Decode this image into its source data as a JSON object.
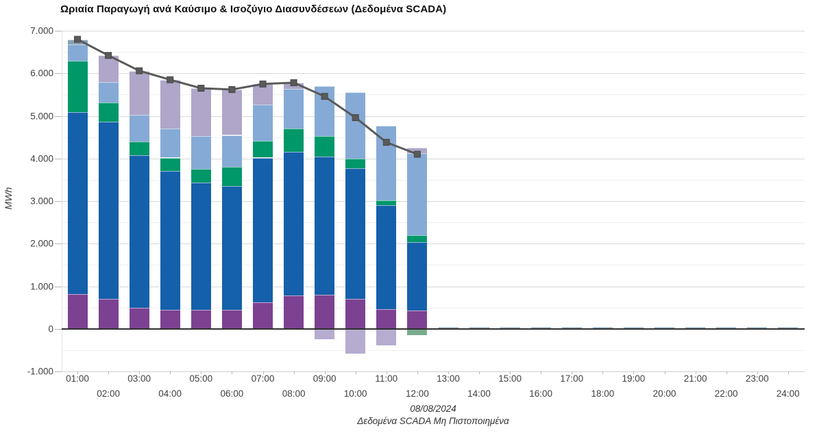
{
  "chart": {
    "title": "Ωριαία Παραγωγή ανά Καύσιμο & Ισοζύγιο Διασυνδέσεων (Δεδομένα SCADA)",
    "y_axis_title": "MWh",
    "footer_date": "08/08/2024",
    "footer_note": "Δεδομένα SCADA Μη Πιστοποιημένα"
  },
  "chart_data": {
    "type": "bar",
    "stacked": true,
    "title": "Ωριαία Παραγωγή ανά Καύσιμο & Ισοζύγιο Διασυνδέσεων (Δεδομένα SCADA)",
    "xlabel": "08/08/2024",
    "ylabel": "MWh",
    "ylim": [
      -1000,
      7000
    ],
    "grid": "horizontal",
    "grid_interval": 500,
    "legend_position": "none",
    "categories": [
      "01:00",
      "02:00",
      "03:00",
      "04:00",
      "05:00",
      "06:00",
      "07:00",
      "08:00",
      "09:00",
      "10:00",
      "11:00",
      "12:00",
      "13:00",
      "14:00",
      "15:00",
      "16:00",
      "17:00",
      "18:00",
      "19:00",
      "20:00",
      "21:00",
      "22:00",
      "23:00",
      "24:00"
    ],
    "yticks": [
      {
        "value": -1000,
        "label": "-1.000"
      },
      {
        "value": 0,
        "label": "0"
      },
      {
        "value": 1000,
        "label": "1.000"
      },
      {
        "value": 2000,
        "label": "2.000"
      },
      {
        "value": 3000,
        "label": "3.000"
      },
      {
        "value": 4000,
        "label": "4.000"
      },
      {
        "value": 5000,
        "label": "5.000"
      },
      {
        "value": 6000,
        "label": "6.000"
      },
      {
        "value": 7000,
        "label": "7.000"
      }
    ],
    "series": [
      {
        "name": "fuel-purple",
        "color": "#7d4192",
        "values": [
          810,
          700,
          500,
          450,
          450,
          450,
          620,
          780,
          800,
          710,
          460,
          430,
          0,
          0,
          0,
          0,
          0,
          0,
          0,
          0,
          0,
          0,
          0,
          0
        ]
      },
      {
        "name": "fuel-blue",
        "color": "#1560ab",
        "values": [
          4280,
          4160,
          3580,
          3260,
          2980,
          2910,
          3400,
          3370,
          3250,
          3060,
          2440,
          1600,
          0,
          0,
          0,
          0,
          0,
          0,
          0,
          0,
          0,
          0,
          0,
          0
        ]
      },
      {
        "name": "fuel-green",
        "color": "#009769",
        "values": [
          1210,
          450,
          320,
          310,
          320,
          440,
          390,
          560,
          470,
          220,
          120,
          170,
          0,
          0,
          0,
          0,
          0,
          0,
          0,
          0,
          0,
          0,
          0,
          0
        ]
      },
      {
        "name": "fuel-lightblue",
        "color": "#86aad6",
        "values": [
          380,
          480,
          620,
          680,
          770,
          750,
          850,
          920,
          1180,
          1560,
          1750,
          1930,
          0,
          0,
          0,
          0,
          0,
          0,
          0,
          0,
          0,
          0,
          0,
          0
        ]
      },
      {
        "name": "fuel-lavender",
        "color": "#afa6c9",
        "values": [
          0,
          630,
          1040,
          1150,
          1130,
          1070,
          490,
          150,
          0,
          0,
          0,
          120,
          0,
          0,
          0,
          0,
          0,
          0,
          0,
          0,
          0,
          0,
          0,
          0
        ]
      },
      {
        "name": "fuel-bluegray",
        "color": "#8aa2b4",
        "values": [
          120,
          0,
          0,
          0,
          0,
          0,
          0,
          0,
          0,
          0,
          0,
          0,
          40,
          40,
          40,
          40,
          40,
          40,
          40,
          40,
          40,
          40,
          40,
          40
        ]
      },
      {
        "name": "interconnection-export-lavender",
        "color": "#b5accf",
        "values": [
          0,
          0,
          0,
          0,
          0,
          0,
          0,
          0,
          -240,
          -590,
          -390,
          0,
          0,
          0,
          0,
          0,
          0,
          0,
          0,
          0,
          0,
          0,
          0,
          0
        ]
      },
      {
        "name": "interconnection-export-green",
        "color": "#7aab8e",
        "values": [
          0,
          0,
          0,
          0,
          0,
          0,
          0,
          0,
          0,
          0,
          0,
          -150,
          0,
          0,
          0,
          0,
          0,
          0,
          0,
          0,
          0,
          0,
          0,
          0
        ]
      }
    ],
    "line_series": {
      "name": "net-total-line",
      "color": "#5a5a5a",
      "marker": "square",
      "values": [
        6800,
        6420,
        6060,
        5850,
        5650,
        5620,
        5750,
        5780,
        5460,
        4960,
        4380,
        4100,
        null,
        null,
        null,
        null,
        null,
        null,
        null,
        null,
        null,
        null,
        null,
        null
      ]
    }
  },
  "layout_colors": {
    "background": "#ffffff",
    "grid_minor": "#efefef",
    "grid_major": "#d8d8d8",
    "zero_line": "#2e2e2e",
    "tick_text": "#404040"
  }
}
